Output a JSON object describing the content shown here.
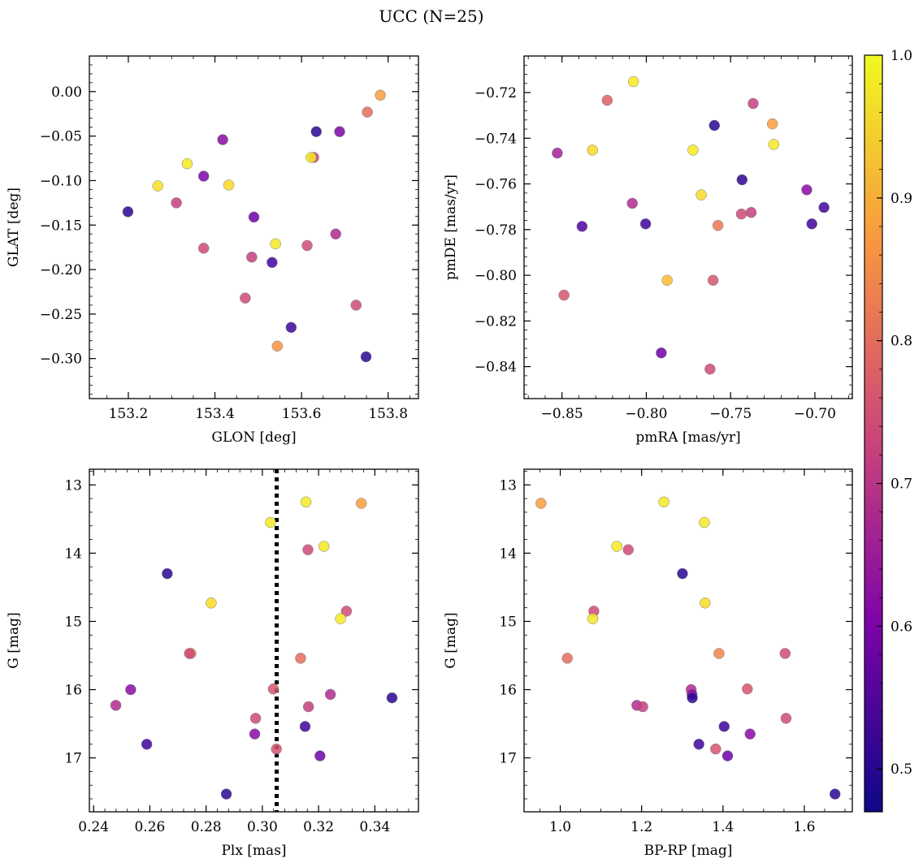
{
  "figure": {
    "title": "UCC (N=25)",
    "colormap": "plasma",
    "colorbar": {
      "min": 0.47,
      "max": 1.0,
      "ticks": [
        0.5,
        0.6,
        0.7,
        0.8,
        0.9,
        1.0
      ],
      "tick_labels": [
        "0.5",
        "0.6",
        "0.7",
        "0.8",
        "0.9",
        "1.0"
      ]
    }
  },
  "chart_data": [
    {
      "id": "glon-glat",
      "type": "scatter",
      "title": "",
      "xlabel": "GLON [deg]",
      "ylabel": "GLAT [deg]",
      "xlim": [
        153.11,
        153.87
      ],
      "ylim": [
        -0.345,
        0.04
      ],
      "xticks": [
        153.2,
        153.4,
        153.6,
        153.8
      ],
      "xtick_labels": [
        "153.2",
        "153.4",
        "153.6",
        "153.8"
      ],
      "yticks": [
        0.0,
        -0.05,
        -0.1,
        -0.15,
        -0.2,
        -0.25,
        -0.3
      ],
      "ytick_labels": [
        "0.00",
        "−0.05",
        "−0.10",
        "−0.15",
        "−0.20",
        "−0.25",
        "−0.30"
      ],
      "points": [
        {
          "x": 153.782,
          "y": -0.004,
          "c": 0.88
        },
        {
          "x": 153.752,
          "y": -0.023,
          "c": 0.8
        },
        {
          "x": 153.634,
          "y": -0.045,
          "c": 0.5
        },
        {
          "x": 153.688,
          "y": -0.045,
          "c": 0.6
        },
        {
          "x": 153.418,
          "y": -0.054,
          "c": 0.62
        },
        {
          "x": 153.628,
          "y": -0.074,
          "c": 0.72
        },
        {
          "x": 153.622,
          "y": -0.074,
          "c": 0.98
        },
        {
          "x": 153.336,
          "y": -0.081,
          "c": 0.98
        },
        {
          "x": 153.374,
          "y": -0.095,
          "c": 0.6
        },
        {
          "x": 153.268,
          "y": -0.106,
          "c": 0.97
        },
        {
          "x": 153.432,
          "y": -0.105,
          "c": 0.96
        },
        {
          "x": 153.311,
          "y": -0.125,
          "c": 0.72
        },
        {
          "x": 153.199,
          "y": -0.135,
          "c": 0.5
        },
        {
          "x": 153.49,
          "y": -0.141,
          "c": 0.58
        },
        {
          "x": 153.679,
          "y": -0.16,
          "c": 0.68
        },
        {
          "x": 153.54,
          "y": -0.171,
          "c": 0.98
        },
        {
          "x": 153.374,
          "y": -0.176,
          "c": 0.74
        },
        {
          "x": 153.613,
          "y": -0.173,
          "c": 0.74
        },
        {
          "x": 153.485,
          "y": -0.186,
          "c": 0.72
        },
        {
          "x": 153.532,
          "y": -0.192,
          "c": 0.52
        },
        {
          "x": 153.47,
          "y": -0.232,
          "c": 0.74
        },
        {
          "x": 153.726,
          "y": -0.24,
          "c": 0.74
        },
        {
          "x": 153.576,
          "y": -0.265,
          "c": 0.52
        },
        {
          "x": 153.544,
          "y": -0.286,
          "c": 0.86
        },
        {
          "x": 153.749,
          "y": -0.298,
          "c": 0.5
        }
      ]
    },
    {
      "id": "pmra-pmde",
      "type": "scatter",
      "title": "",
      "xlabel": "pmRA [mas/yr]",
      "ylabel": "pmDE [mas/yr]",
      "xlim": [
        -0.8725,
        -0.6778
      ],
      "ylim": [
        -0.854,
        -0.704
      ],
      "xticks": [
        -0.85,
        -0.8,
        -0.75,
        -0.7
      ],
      "xtick_labels": [
        "−0.85",
        "−0.80",
        "−0.75",
        "−0.70"
      ],
      "yticks": [
        -0.72,
        -0.74,
        -0.76,
        -0.78,
        -0.8,
        -0.82,
        -0.84
      ],
      "ytick_labels": [
        "−0.72",
        "−0.74",
        "−0.76",
        "−0.78",
        "−0.80",
        "−0.82",
        "−0.84"
      ],
      "points": [
        {
          "x": -0.8076,
          "y": -0.7152,
          "c": 0.98
        },
        {
          "x": -0.8232,
          "y": -0.7234,
          "c": 0.78
        },
        {
          "x": -0.7366,
          "y": -0.7248,
          "c": 0.72
        },
        {
          "x": -0.7596,
          "y": -0.7344,
          "c": 0.5
        },
        {
          "x": -0.7252,
          "y": -0.7337,
          "c": 0.88
        },
        {
          "x": -0.8319,
          "y": -0.7452,
          "c": 0.96
        },
        {
          "x": -0.7723,
          "y": -0.7452,
          "c": 0.98
        },
        {
          "x": -0.8528,
          "y": -0.7465,
          "c": 0.66
        },
        {
          "x": -0.7244,
          "y": -0.7427,
          "c": 0.98
        },
        {
          "x": -0.7432,
          "y": -0.7582,
          "c": 0.5
        },
        {
          "x": -0.7674,
          "y": -0.7648,
          "c": 0.96
        },
        {
          "x": -0.7048,
          "y": -0.7626,
          "c": 0.62
        },
        {
          "x": -0.8083,
          "y": -0.7685,
          "c": 0.68
        },
        {
          "x": -0.7436,
          "y": -0.7732,
          "c": 0.74
        },
        {
          "x": -0.7378,
          "y": -0.7725,
          "c": 0.72
        },
        {
          "x": -0.6946,
          "y": -0.7703,
          "c": 0.52
        },
        {
          "x": -0.8381,
          "y": -0.7786,
          "c": 0.54
        },
        {
          "x": -0.8004,
          "y": -0.7775,
          "c": 0.52
        },
        {
          "x": -0.7575,
          "y": -0.7782,
          "c": 0.82
        },
        {
          "x": -0.7018,
          "y": -0.7775,
          "c": 0.52
        },
        {
          "x": -0.7876,
          "y": -0.8022,
          "c": 0.92
        },
        {
          "x": -0.7604,
          "y": -0.8022,
          "c": 0.76
        },
        {
          "x": -0.8488,
          "y": -0.8087,
          "c": 0.76
        },
        {
          "x": -0.7911,
          "y": -0.834,
          "c": 0.58
        },
        {
          "x": -0.7622,
          "y": -0.8411,
          "c": 0.74
        }
      ]
    },
    {
      "id": "plx-g",
      "type": "scatter",
      "title": "",
      "xlabel": "Plx [mas]",
      "ylabel": "G [mag]",
      "xlim": [
        0.2385,
        0.3555
      ],
      "ylim": [
        17.79,
        12.77
      ],
      "xticks": [
        0.24,
        0.26,
        0.28,
        0.3,
        0.32,
        0.34
      ],
      "xtick_labels": [
        "0.24",
        "0.26",
        "0.28",
        "0.30",
        "0.32",
        "0.34"
      ],
      "yticks": [
        13,
        14,
        15,
        16,
        17
      ],
      "ytick_labels": [
        "13",
        "14",
        "15",
        "16",
        "17"
      ],
      "vline": {
        "x": 0.3051,
        "style": "dotted"
      },
      "points": [
        {
          "x": 0.3155,
          "y": 13.25,
          "c": 0.98
        },
        {
          "x": 0.3352,
          "y": 13.27,
          "c": 0.88
        },
        {
          "x": 0.3029,
          "y": 13.55,
          "c": 0.98
        },
        {
          "x": 0.3219,
          "y": 13.9,
          "c": 0.98
        },
        {
          "x": 0.3162,
          "y": 13.95,
          "c": 0.74
        },
        {
          "x": 0.2662,
          "y": 14.3,
          "c": 0.5
        },
        {
          "x": 0.2818,
          "y": 14.73,
          "c": 0.96
        },
        {
          "x": 0.3299,
          "y": 14.85,
          "c": 0.74
        },
        {
          "x": 0.3278,
          "y": 14.96,
          "c": 0.98
        },
        {
          "x": 0.2746,
          "y": 15.47,
          "c": 0.84
        },
        {
          "x": 0.2741,
          "y": 15.47,
          "c": 0.74
        },
        {
          "x": 0.3136,
          "y": 15.54,
          "c": 0.8
        },
        {
          "x": 0.2532,
          "y": 16.0,
          "c": 0.62
        },
        {
          "x": 0.3039,
          "y": 15.99,
          "c": 0.76
        },
        {
          "x": 0.3242,
          "y": 16.07,
          "c": 0.68
        },
        {
          "x": 0.3461,
          "y": 16.12,
          "c": 0.5
        },
        {
          "x": 0.2479,
          "y": 16.23,
          "c": 0.68
        },
        {
          "x": 0.3164,
          "y": 16.25,
          "c": 0.72
        },
        {
          "x": 0.2976,
          "y": 16.42,
          "c": 0.74
        },
        {
          "x": 0.3152,
          "y": 16.54,
          "c": 0.52
        },
        {
          "x": 0.2973,
          "y": 16.65,
          "c": 0.62
        },
        {
          "x": 0.2589,
          "y": 16.8,
          "c": 0.52
        },
        {
          "x": 0.305,
          "y": 16.87,
          "c": 0.76
        },
        {
          "x": 0.3205,
          "y": 16.97,
          "c": 0.58
        },
        {
          "x": 0.2872,
          "y": 17.53,
          "c": 0.5
        }
      ]
    },
    {
      "id": "bprp-g",
      "type": "scatter",
      "title": "",
      "xlabel": "BP-RP [mag]",
      "ylabel": "G [mag]",
      "xlim": [
        0.911,
        1.718
      ],
      "ylim": [
        17.79,
        12.77
      ],
      "xticks": [
        1.0,
        1.2,
        1.4,
        1.6
      ],
      "xtick_labels": [
        "1.0",
        "1.2",
        "1.4",
        "1.6"
      ],
      "yticks": [
        13,
        14,
        15,
        16,
        17
      ],
      "ytick_labels": [
        "13",
        "14",
        "15",
        "16",
        "17"
      ],
      "points": [
        {
          "x": 0.9526,
          "y": 13.27,
          "c": 0.88
        },
        {
          "x": 1.2547,
          "y": 13.25,
          "c": 0.98
        },
        {
          "x": 1.3543,
          "y": 13.55,
          "c": 0.98
        },
        {
          "x": 1.1391,
          "y": 13.9,
          "c": 0.98
        },
        {
          "x": 1.1672,
          "y": 13.95,
          "c": 0.74
        },
        {
          "x": 1.3004,
          "y": 14.3,
          "c": 0.5
        },
        {
          "x": 1.3561,
          "y": 14.73,
          "c": 0.96
        },
        {
          "x": 1.0826,
          "y": 14.85,
          "c": 0.74
        },
        {
          "x": 1.0798,
          "y": 14.96,
          "c": 0.98
        },
        {
          "x": 1.3903,
          "y": 15.47,
          "c": 0.84
        },
        {
          "x": 1.5528,
          "y": 15.47,
          "c": 0.74
        },
        {
          "x": 1.0173,
          "y": 15.54,
          "c": 0.8
        },
        {
          "x": 1.3218,
          "y": 16.0,
          "c": 0.68
        },
        {
          "x": 1.4599,
          "y": 15.99,
          "c": 0.76
        },
        {
          "x": 1.3239,
          "y": 16.07,
          "c": 0.62
        },
        {
          "x": 1.3246,
          "y": 16.12,
          "c": 0.5
        },
        {
          "x": 1.1883,
          "y": 16.23,
          "c": 0.68
        },
        {
          "x": 1.2028,
          "y": 16.25,
          "c": 0.72
        },
        {
          "x": 1.5551,
          "y": 16.42,
          "c": 0.74
        },
        {
          "x": 1.4029,
          "y": 16.54,
          "c": 0.52
        },
        {
          "x": 1.4667,
          "y": 16.65,
          "c": 0.62
        },
        {
          "x": 1.3408,
          "y": 16.8,
          "c": 0.52
        },
        {
          "x": 1.3821,
          "y": 16.87,
          "c": 0.76
        },
        {
          "x": 1.4114,
          "y": 16.97,
          "c": 0.58
        },
        {
          "x": 1.6755,
          "y": 17.53,
          "c": 0.5
        }
      ]
    }
  ]
}
